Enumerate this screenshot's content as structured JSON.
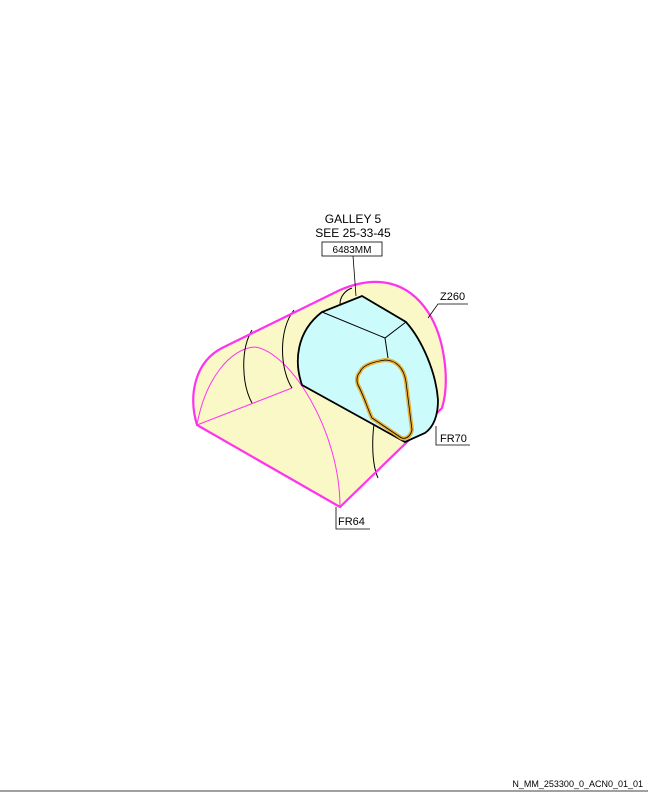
{
  "diagram": {
    "callout": {
      "title": "GALLEY 5",
      "reference": "SEE 25-33-45",
      "part_number": "6483MM"
    },
    "labels": {
      "zone": "Z260",
      "frame_aft": "FR70",
      "frame_fwd": "FR64"
    },
    "drawing_code": "N_MM_253300_0_ACN0_01_01",
    "colors": {
      "fuselage_section_fill": "#fbf8c8",
      "galley_fill": "#ccfbfb",
      "highlight_outline": "#ff33ee",
      "hatch_outline": "#e8b23a",
      "line": "#000000"
    }
  }
}
